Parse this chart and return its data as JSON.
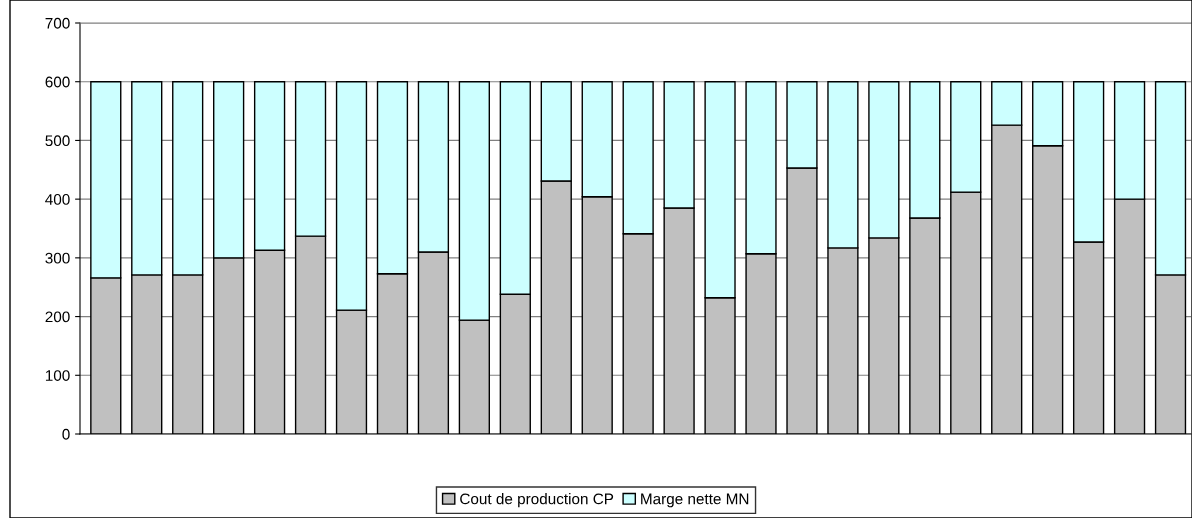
{
  "chart_data": {
    "type": "bar",
    "stacked": true,
    "categories": [
      null,
      null,
      null,
      null,
      null,
      null,
      null,
      null,
      null,
      null,
      null,
      null,
      null,
      null,
      null,
      null,
      null,
      null,
      null,
      null,
      null,
      null,
      null,
      null,
      null,
      null,
      null
    ],
    "series": [
      {
        "name": "Cout de production CP",
        "color": "#c0c0c0",
        "values": [
          266,
          271,
          271,
          300,
          313,
          337,
          211,
          273,
          310,
          194,
          238,
          431,
          404,
          341,
          385,
          232,
          307,
          453,
          317,
          334,
          368,
          412,
          526,
          491,
          327,
          400,
          271
        ]
      },
      {
        "name": "Marge nette MN",
        "color": "#ccffff",
        "values": [
          334,
          329,
          329,
          300,
          287,
          263,
          389,
          327,
          290,
          406,
          362,
          169,
          196,
          259,
          215,
          368,
          293,
          147,
          283,
          266,
          232,
          188,
          74,
          109,
          273,
          200,
          329
        ]
      }
    ],
    "ylim": [
      0,
      700
    ],
    "yticks": [
      0,
      100,
      200,
      300,
      400,
      500,
      600,
      700
    ],
    "grid": "y",
    "legend": "bottom"
  }
}
